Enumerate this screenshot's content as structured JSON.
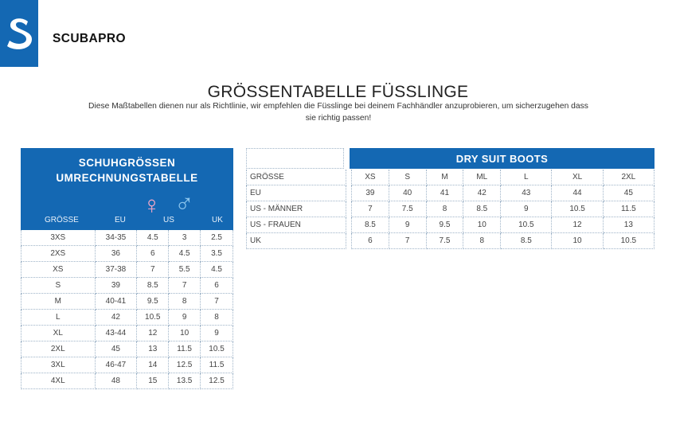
{
  "brand": {
    "name": "SCUBAPRO",
    "logo_letter": "S"
  },
  "title": "GRÖSSENTABELLE FÜSSLINGE",
  "subtitle": "Diese Maßtabellen dienen nur als Richtlinie, wir empfehlen die Füsslinge bei deinem Fachhändler anzuprobieren, um sicherzugehen dass sie richtig passen!",
  "colors": {
    "accent": "#1468b3",
    "female": "#f2a7c6",
    "male": "#8ec7ee"
  },
  "conversion": {
    "heading_line1": "SCHUHGRÖSSEN",
    "heading_line2": "UMRECHNUNGSTABELLE",
    "female_symbol": "♀",
    "male_symbol": "♂",
    "columns": [
      "GRÖSSE",
      "EU",
      "US",
      "UK"
    ],
    "rows": [
      [
        "3XS",
        "34-35",
        "4.5",
        "3",
        "2.5"
      ],
      [
        "2XS",
        "36",
        "6",
        "4.5",
        "3.5"
      ],
      [
        "XS",
        "37-38",
        "7",
        "5.5",
        "4.5"
      ],
      [
        "S",
        "39",
        "8.5",
        "7",
        "6"
      ],
      [
        "M",
        "40-41",
        "9.5",
        "8",
        "7"
      ],
      [
        "L",
        "42",
        "10.5",
        "9",
        "8"
      ],
      [
        "XL",
        "43-44",
        "12",
        "10",
        "9"
      ],
      [
        "2XL",
        "45",
        "13",
        "11.5",
        "10.5"
      ],
      [
        "3XL",
        "46-47",
        "14",
        "12.5",
        "11.5"
      ],
      [
        "4XL",
        "48",
        "15",
        "13.5",
        "12.5"
      ]
    ]
  },
  "dry_suit": {
    "heading": "DRY SUIT BOOTS",
    "rows": [
      {
        "label": "GRÖSSE",
        "values": [
          "XS",
          "S",
          "M",
          "ML",
          "L",
          "XL",
          "2XL"
        ]
      },
      {
        "label": "EU",
        "values": [
          "39",
          "40",
          "41",
          "42",
          "43",
          "44",
          "45"
        ]
      },
      {
        "label": "US - MÄNNER",
        "values": [
          "7",
          "7.5",
          "8",
          "8.5",
          "9",
          "10.5",
          "11.5"
        ]
      },
      {
        "label": "US - FRAUEN",
        "values": [
          "8.5",
          "9",
          "9.5",
          "10",
          "10.5",
          "12",
          "13"
        ]
      },
      {
        "label": "UK",
        "values": [
          "6",
          "7",
          "7.5",
          "8",
          "8.5",
          "10",
          "10.5"
        ]
      }
    ]
  }
}
